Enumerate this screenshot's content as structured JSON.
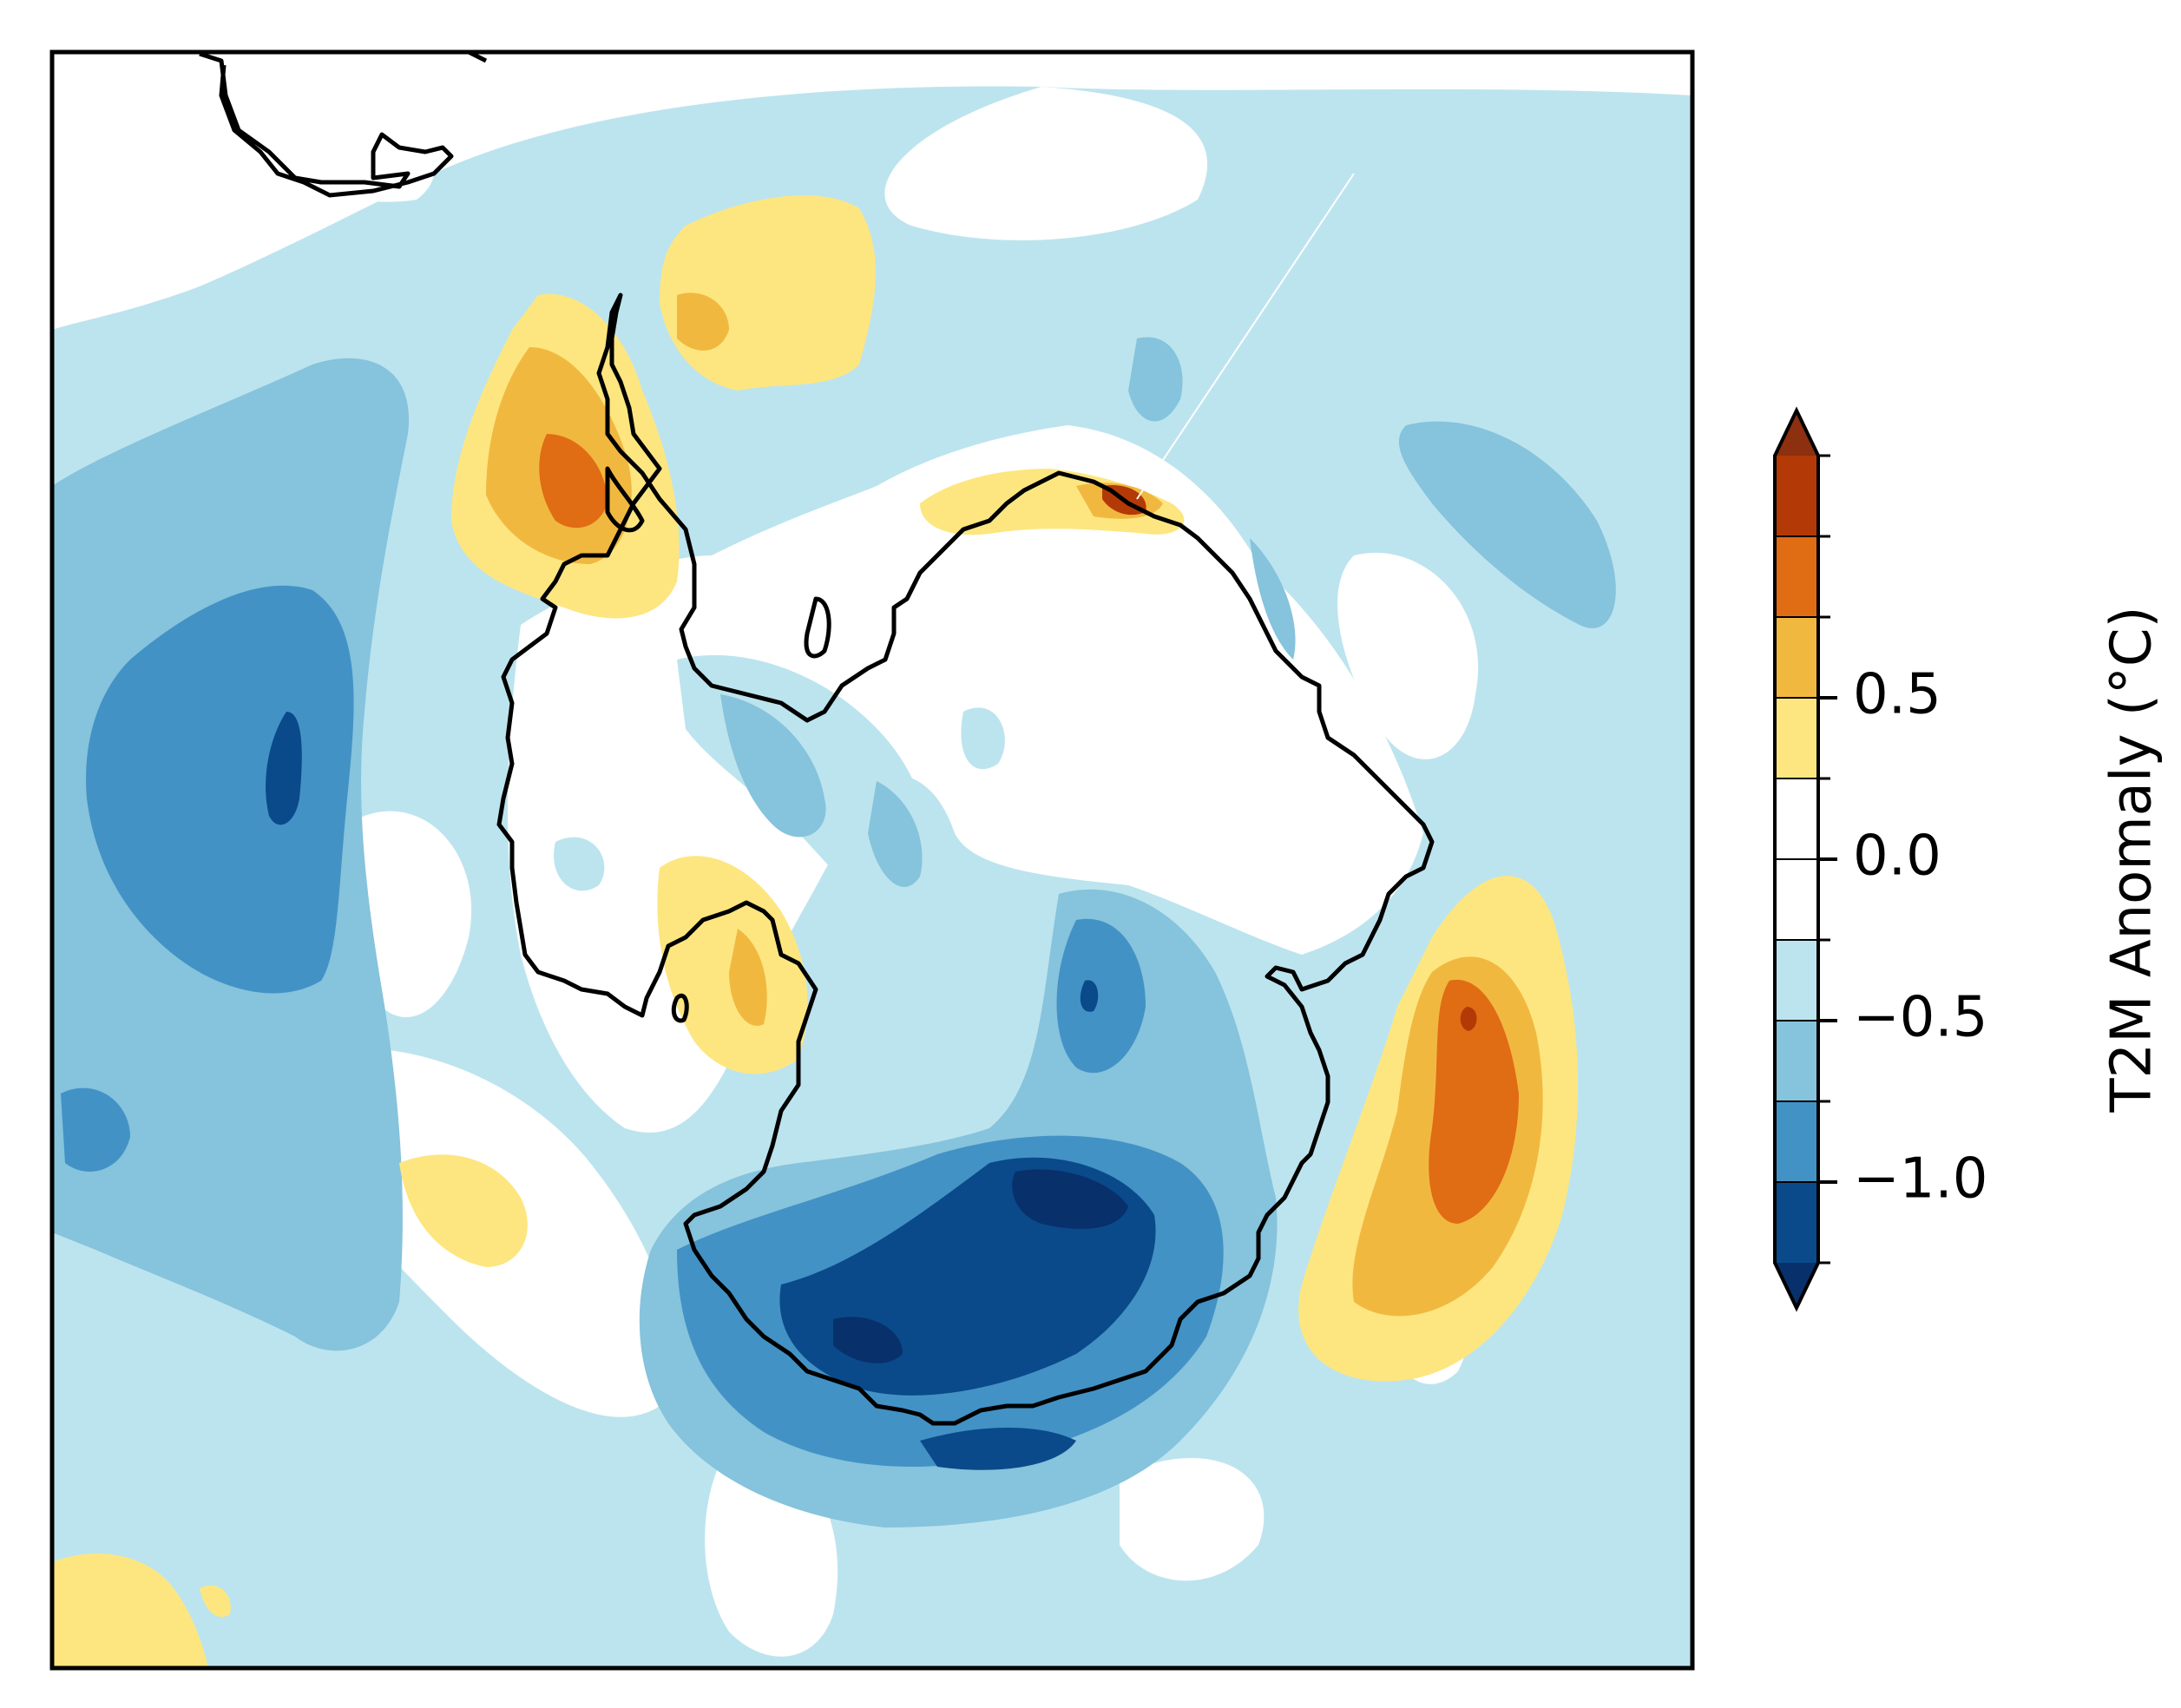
{
  "map": {
    "type": "filled-contour",
    "projection": "south-polar-stereographic",
    "region": "Antarctica",
    "coastlines": true
  },
  "colorbar": {
    "label": "T2M Anomaly (°C)",
    "orientation": "vertical",
    "extend": "both",
    "levels": [
      -1.25,
      -1.0,
      -0.75,
      -0.5,
      -0.25,
      0.0,
      0.25,
      0.5,
      0.75,
      1.0,
      1.25
    ],
    "tick_labels": [
      "0.5",
      "0.0",
      "−0.5",
      "−1.0"
    ],
    "tick_values": [
      0.5,
      0.0,
      -0.5,
      -1.0
    ],
    "colors": {
      "under": "#08306b",
      "bins": [
        "#0a4a8a",
        "#4292c6",
        "#86c3dc",
        "#bce4ee",
        "#ffffff",
        "#ffffff",
        "#fde680",
        "#f1b840",
        "#e06c14",
        "#b33a06"
      ],
      "over": "#8c3010"
    }
  }
}
